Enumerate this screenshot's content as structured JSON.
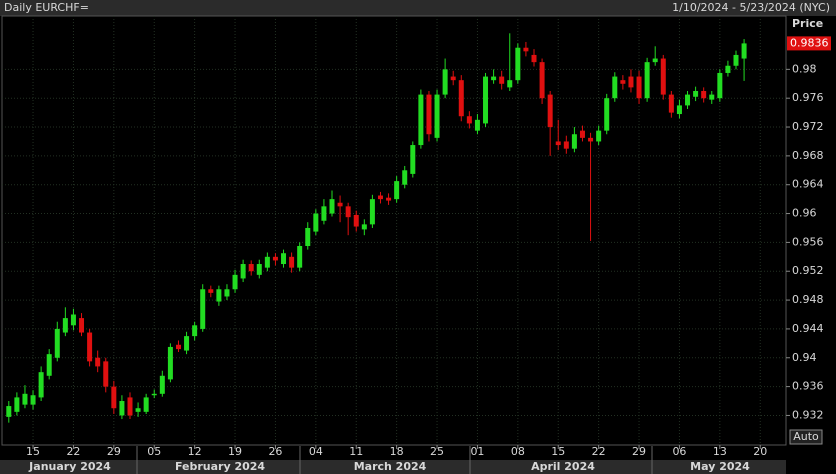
{
  "chart_data": {
    "type": "candlestick",
    "title": "Daily EURCHF=",
    "subtitle": "1/10/2024 - 5/23/2024 (NYC)",
    "y_label": "Price",
    "scale_mode": "Auto",
    "up_color": "#22dd22",
    "down_color": "#e01010",
    "ylim": [
      0.9279,
      0.9874
    ],
    "yticks": [
      0.932,
      0.936,
      0.94,
      0.944,
      0.948,
      0.952,
      0.956,
      0.96,
      0.964,
      0.968,
      0.972,
      0.976,
      0.98
    ],
    "last_price": 0.9836,
    "grid": true,
    "months": [
      "January 2024",
      "February 2024",
      "March 2024",
      "April 2024",
      "May 2024"
    ],
    "categories": [
      null,
      null,
      null,
      "15",
      null,
      null,
      null,
      null,
      "22",
      null,
      null,
      null,
      null,
      "29",
      null,
      null,
      null,
      null,
      "05",
      null,
      null,
      null,
      null,
      "12",
      null,
      null,
      null,
      null,
      "19",
      null,
      null,
      null,
      null,
      "26",
      null,
      null,
      null,
      null,
      "04",
      null,
      null,
      null,
      null,
      "11",
      null,
      null,
      null,
      null,
      "18",
      null,
      null,
      null,
      null,
      "25",
      null,
      null,
      null,
      null,
      "01",
      null,
      null,
      null,
      null,
      "08",
      null,
      null,
      null,
      null,
      "15",
      null,
      null,
      null,
      null,
      "22",
      null,
      null,
      null,
      null,
      "29",
      null,
      null,
      null,
      null,
      "06",
      null,
      null,
      null,
      null,
      "13",
      null,
      null,
      null,
      null,
      "20",
      null,
      null,
      null
    ],
    "open": [
      0.9318,
      0.9325,
      0.9335,
      0.9335,
      0.9345,
      0.9375,
      0.94,
      0.9435,
      0.9445,
      0.9455,
      0.9435,
      0.94,
      0.9395,
      0.936,
      0.932,
      0.9345,
      0.9325,
      0.9325,
      0.9348,
      0.935,
      0.937,
      0.9418,
      0.941,
      0.943,
      0.944,
      0.9495,
      0.9478,
      0.9485,
      0.9495,
      0.951,
      0.953,
      0.9515,
      0.9525,
      0.954,
      0.953,
      0.954,
      0.9525,
      0.9555,
      0.9575,
      0.959,
      0.96,
      0.9615,
      0.961,
      0.9598,
      0.9578,
      0.9585,
      0.9625,
      0.9622,
      0.962,
      0.964,
      0.9655,
      0.9695,
      0.9765,
      0.9705,
      0.9765,
      0.979,
      0.9785,
      0.9735,
      0.9715,
      0.9725,
      0.9785,
      0.979,
      0.9775,
      0.9785,
      0.983,
      0.982,
      0.981,
      0.9765,
      0.97,
      0.97,
      0.969,
      0.9715,
      0.9705,
      0.97,
      0.9715,
      0.976,
      0.9785,
      0.979,
      0.979,
      0.976,
      0.981,
      0.9815,
      0.9765,
      0.9738,
      0.975,
      0.9762,
      0.977,
      0.9758,
      0.976,
      0.9795,
      0.9805,
      0.9815,
      null,
      null,
      null,
      null,
      null
    ],
    "high": [
      0.934,
      0.9352,
      0.9362,
      0.9355,
      0.9388,
      0.9412,
      0.945,
      0.947,
      0.9468,
      0.9462,
      0.944,
      0.941,
      0.94,
      0.9368,
      0.9348,
      0.9352,
      0.9338,
      0.935,
      0.9356,
      0.9382,
      0.942,
      0.9424,
      0.9436,
      0.945,
      0.9502,
      0.95,
      0.95,
      0.9502,
      0.9522,
      0.9536,
      0.9535,
      0.9536,
      0.9546,
      0.9545,
      0.955,
      0.9546,
      0.956,
      0.9588,
      0.9606,
      0.962,
      0.9632,
      0.9625,
      0.9615,
      0.9604,
      0.9592,
      0.9626,
      0.963,
      0.9628,
      0.9652,
      0.9666,
      0.97,
      0.9772,
      0.977,
      0.9772,
      0.9815,
      0.9798,
      0.9792,
      0.9742,
      0.9738,
      0.9795,
      0.98,
      0.9798,
      0.985,
      0.9836,
      0.9838,
      0.9828,
      0.9815,
      0.977,
      0.973,
      0.9708,
      0.972,
      0.9722,
      0.9712,
      0.9722,
      0.9766,
      0.9796,
      0.9792,
      0.98,
      0.9798,
      0.9816,
      0.9832,
      0.982,
      0.977,
      0.9758,
      0.977,
      0.9776,
      0.9775,
      0.977,
      0.98,
      0.9812,
      0.9826,
      0.9842,
      null,
      null,
      null,
      null,
      null
    ],
    "low": [
      0.931,
      0.932,
      0.933,
      0.9328,
      0.934,
      0.937,
      0.9395,
      0.943,
      0.9438,
      0.943,
      0.9388,
      0.938,
      0.9352,
      0.9322,
      0.9315,
      0.9315,
      0.9318,
      0.9322,
      0.9344,
      0.9346,
      0.9366,
      0.9408,
      0.9405,
      0.9424,
      0.9436,
      0.9484,
      0.9472,
      0.948,
      0.949,
      0.9505,
      0.9514,
      0.951,
      0.952,
      0.9528,
      0.9525,
      0.9518,
      0.952,
      0.955,
      0.957,
      0.9585,
      0.9596,
      0.9588,
      0.957,
      0.9575,
      0.957,
      0.958,
      0.9614,
      0.9612,
      0.9615,
      0.9635,
      0.965,
      0.969,
      0.97,
      0.97,
      0.976,
      0.9778,
      0.9728,
      0.9718,
      0.971,
      0.972,
      0.978,
      0.9772,
      0.977,
      0.978,
      0.9818,
      0.9804,
      0.9752,
      0.968,
      0.9688,
      0.9683,
      0.9685,
      0.97,
      0.9562,
      0.9695,
      0.971,
      0.9755,
      0.9772,
      0.9768,
      0.9752,
      0.9755,
      0.9805,
      0.9758,
      0.9733,
      0.9732,
      0.9745,
      0.9756,
      0.9754,
      0.9752,
      0.9755,
      0.979,
      0.98,
      0.9784,
      null,
      null,
      null,
      null,
      null
    ],
    "close": [
      0.9333,
      0.9345,
      0.935,
      0.9348,
      0.938,
      0.9405,
      0.944,
      0.9455,
      0.946,
      0.9435,
      0.9395,
      0.9388,
      0.936,
      0.933,
      0.934,
      0.932,
      0.933,
      0.9345,
      0.935,
      0.9375,
      0.9415,
      0.9412,
      0.943,
      0.9445,
      0.9495,
      0.949,
      0.9495,
      0.9495,
      0.9515,
      0.953,
      0.952,
      0.953,
      0.954,
      0.9535,
      0.9545,
      0.9525,
      0.9555,
      0.958,
      0.96,
      0.961,
      0.962,
      0.961,
      0.9595,
      0.9582,
      0.9585,
      0.962,
      0.962,
      0.9618,
      0.9645,
      0.966,
      0.9695,
      0.9765,
      0.971,
      0.9765,
      0.98,
      0.9785,
      0.9735,
      0.9725,
      0.973,
      0.979,
      0.979,
      0.978,
      0.9785,
      0.983,
      0.9825,
      0.981,
      0.976,
      0.972,
      0.9695,
      0.969,
      0.971,
      0.9705,
      0.97,
      0.9715,
      0.976,
      0.979,
      0.978,
      0.9775,
      0.976,
      0.981,
      0.9815,
      0.9765,
      0.974,
      0.975,
      0.9765,
      0.977,
      0.976,
      0.9765,
      0.9795,
      0.9805,
      0.982,
      0.9836,
      null,
      null,
      null,
      null,
      null
    ]
  }
}
